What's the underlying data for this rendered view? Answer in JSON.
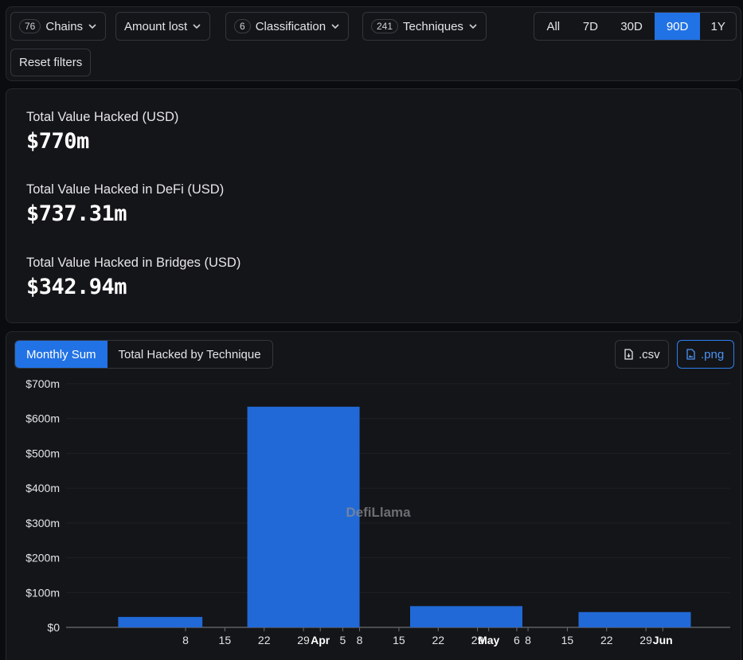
{
  "filters": {
    "chains": {
      "count": "76",
      "label": "Chains"
    },
    "amount_lost": {
      "label": "Amount lost"
    },
    "classification": {
      "count": "6",
      "label": "Classification"
    },
    "techniques": {
      "count": "241",
      "label": "Techniques"
    },
    "reset_label": "Reset filters",
    "ranges": [
      {
        "label": "All",
        "active": false
      },
      {
        "label": "7D",
        "active": false
      },
      {
        "label": "30D",
        "active": false
      },
      {
        "label": "90D",
        "active": true
      },
      {
        "label": "1Y",
        "active": false
      }
    ]
  },
  "stats": [
    {
      "label": "Total Value Hacked (USD)",
      "value": "$770m"
    },
    {
      "label": "Total Value Hacked in DeFi (USD)",
      "value": "$737.31m"
    },
    {
      "label": "Total Value Hacked in Bridges (USD)",
      "value": "$342.94m"
    }
  ],
  "chart_panel": {
    "tabs": [
      {
        "label": "Monthly Sum",
        "active": true
      },
      {
        "label": "Total Hacked by Technique",
        "active": false
      }
    ],
    "csv_label": ".csv",
    "png_label": ".png",
    "watermark": "DefiLlama",
    "icons": {
      "chevron": "chevron-down-icon",
      "file": "file-download-icon"
    },
    "colors": {
      "accent": "#2172e5",
      "bar": "#2169d6",
      "background": "#141519"
    }
  },
  "chart_data": {
    "type": "bar",
    "title": "",
    "xlabel": "",
    "ylabel": "",
    "ylim": [
      0,
      700
    ],
    "y_ticks": [
      "$0",
      "$100m",
      "$200m",
      "$300m",
      "$400m",
      "$500m",
      "$600m",
      "$700m"
    ],
    "y_tick_values": [
      0,
      100,
      200,
      300,
      400,
      500,
      600,
      700
    ],
    "x_ticks": [
      {
        "label": "8",
        "day": 8,
        "bold": false
      },
      {
        "label": "15",
        "day": 15,
        "bold": false
      },
      {
        "label": "22",
        "day": 22,
        "bold": false
      },
      {
        "label": "29",
        "day": 29,
        "bold": false
      },
      {
        "label": "Apr",
        "day": 32,
        "bold": true
      },
      {
        "label": "5",
        "day": 36,
        "bold": false
      },
      {
        "label": "8",
        "day": 39,
        "bold": false
      },
      {
        "label": "15",
        "day": 46,
        "bold": false
      },
      {
        "label": "22",
        "day": 53,
        "bold": false
      },
      {
        "label": "29",
        "day": 60,
        "bold": false
      },
      {
        "label": "May",
        "day": 62,
        "bold": true
      },
      {
        "label": "6",
        "day": 67,
        "bold": false
      },
      {
        "label": "8",
        "day": 69,
        "bold": false
      },
      {
        "label": "15",
        "day": 76,
        "bold": false
      },
      {
        "label": "22",
        "day": 83,
        "bold": false
      },
      {
        "label": "29",
        "day": 90,
        "bold": false
      },
      {
        "label": "Jun",
        "day": 93,
        "bold": true
      }
    ],
    "series": [
      {
        "values": [
          {
            "start": -4,
            "end": 11,
            "value": 30
          },
          {
            "start": 19,
            "end": 39,
            "value": 634
          },
          {
            "start": 48,
            "end": 68,
            "value": 61
          },
          {
            "start": 78,
            "end": 98,
            "value": 44
          }
        ]
      }
    ]
  }
}
